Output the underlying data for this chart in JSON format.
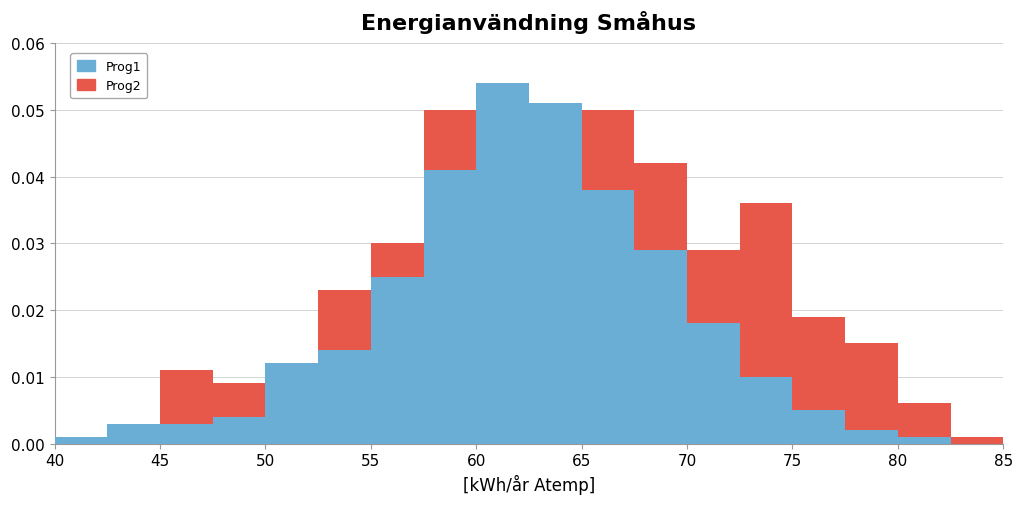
{
  "title": "Energianvändning Småhus",
  "xlabel": "[kWh/år Atemp]",
  "xlim": [
    40,
    85
  ],
  "ylim": [
    0,
    0.06
  ],
  "xticks": [
    40,
    45,
    50,
    55,
    60,
    65,
    70,
    75,
    80,
    85
  ],
  "yticks": [
    0,
    0.01,
    0.02,
    0.03,
    0.04,
    0.05,
    0.06
  ],
  "bin_edges": [
    40,
    42.5,
    45,
    47.5,
    50,
    52.5,
    55,
    57.5,
    60,
    62.5,
    65,
    67.5,
    70,
    72.5,
    75,
    77.5,
    80,
    82.5,
    85
  ],
  "bin_width": 2.5,
  "prog1": [
    0.001,
    0.003,
    0.003,
    0.004,
    0.012,
    0.014,
    0.025,
    0.041,
    0.054,
    0.051,
    0.038,
    0.029,
    0.018,
    0.01,
    0.005,
    0.002,
    0.001,
    0.0
  ],
  "prog2": [
    0.001,
    0.002,
    0.011,
    0.009,
    0.012,
    0.023,
    0.03,
    0.05,
    0.05,
    0.045,
    0.05,
    0.042,
    0.029,
    0.036,
    0.019,
    0.015,
    0.006,
    0.001
  ],
  "color_prog1": "#6aaed6",
  "color_prog2": "#e8584a",
  "title_fontsize": 16,
  "label_fontsize": 12,
  "tick_fontsize": 11,
  "background_color": "#ffffff",
  "grid_color": "#cccccc"
}
